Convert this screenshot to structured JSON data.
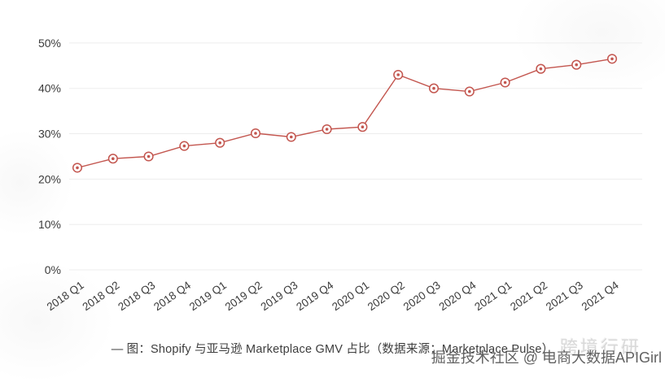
{
  "caption": {
    "text": "— 图：Shopify 与亚马逊 Marketplace GMV 占比（数据来源：Marketplace Pulse）"
  },
  "watermarks": {
    "dark": "掘金技术社区 @ 电商大数据APIGirl",
    "light": "跨境行研"
  },
  "chart_data": {
    "type": "line",
    "title": "Shopify 与亚马逊 Marketplace GMV 占比",
    "source": "Marketplace Pulse",
    "categories": [
      "2018 Q1",
      "2018 Q2",
      "2018 Q3",
      "2018 Q4",
      "2019 Q1",
      "2019 Q2",
      "2019 Q3",
      "2019 Q4",
      "2020 Q1",
      "2020 Q2",
      "2020 Q3",
      "2020 Q4",
      "2021 Q1",
      "2021 Q2",
      "2021 Q3",
      "2021 Q4"
    ],
    "values": [
      22.5,
      24.5,
      25.0,
      27.3,
      28.0,
      30.1,
      29.3,
      31.0,
      31.5,
      43.0,
      40.0,
      39.3,
      41.3,
      44.3,
      45.2,
      46.5
    ],
    "xlabel": "",
    "ylabel": "",
    "ylim": [
      0,
      55
    ],
    "yticks": [
      0,
      10,
      20,
      30,
      40,
      50
    ],
    "ytick_labels": [
      "0%",
      "10%",
      "20%",
      "30%",
      "40%",
      "50%"
    ],
    "grid": "horizontal",
    "legend": "none",
    "line_color": "#c3564f",
    "marker": "circle-dot",
    "marker_fill": "#ffffff",
    "gridline_color": "#ededed",
    "tick_label_color": "#3b3b3b",
    "x_tick_rotation_deg": -35
  }
}
